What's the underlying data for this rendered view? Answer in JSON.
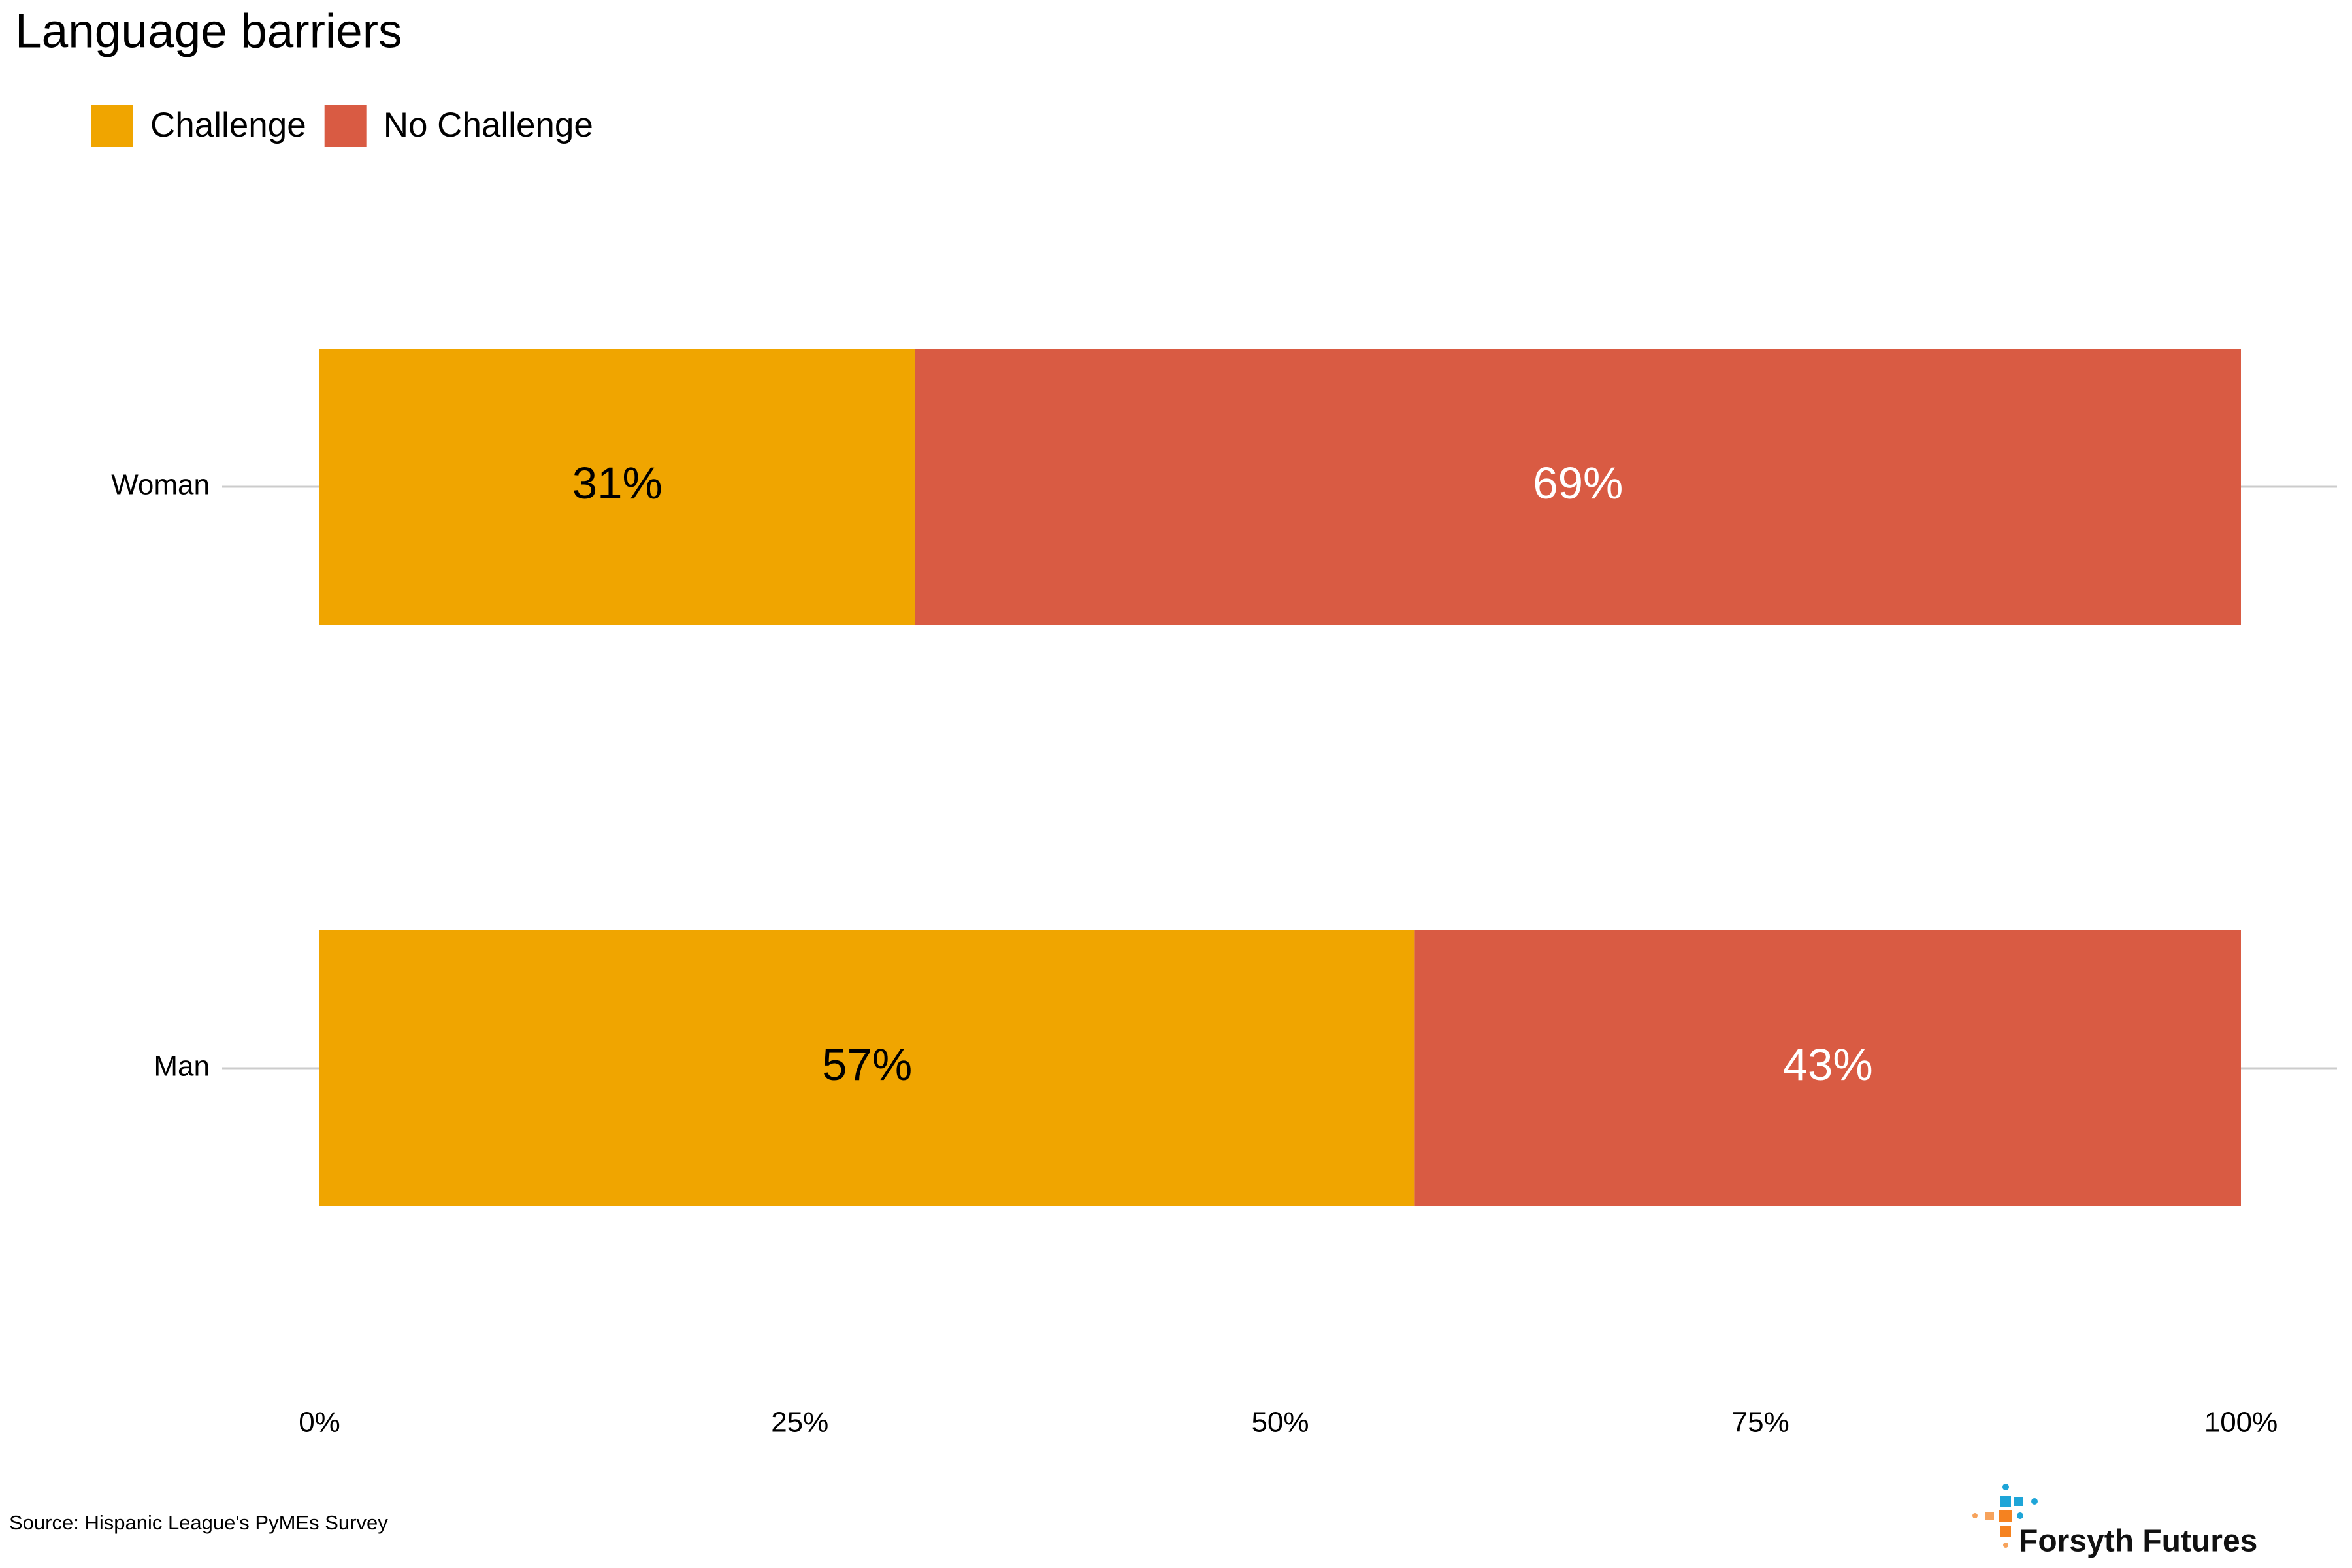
{
  "chart_data": {
    "type": "stacked-bar-horizontal",
    "title": "Language barriers",
    "categories": [
      "Woman",
      "Man"
    ],
    "series": [
      {
        "name": "Challenge",
        "color": "#f0a500",
        "label_color": "#000000",
        "values": [
          31,
          57
        ],
        "value_labels": [
          "31%",
          "57%"
        ]
      },
      {
        "name": "No Challenge",
        "color": "#d95b43",
        "label_color": "#ffffff",
        "values": [
          69,
          43
        ],
        "value_labels": [
          "69%",
          "43%"
        ]
      }
    ],
    "xlim": [
      0,
      100
    ],
    "xticks": [
      {
        "value": 0,
        "label": "0%"
      },
      {
        "value": 25,
        "label": "25%"
      },
      {
        "value": 50,
        "label": "50%"
      },
      {
        "value": 75,
        "label": "75%"
      },
      {
        "value": 100,
        "label": "100%"
      }
    ],
    "legend": "top-left",
    "source": "Source: Hispanic League's PyMEs Survey",
    "logo": "Forsyth Futures"
  }
}
